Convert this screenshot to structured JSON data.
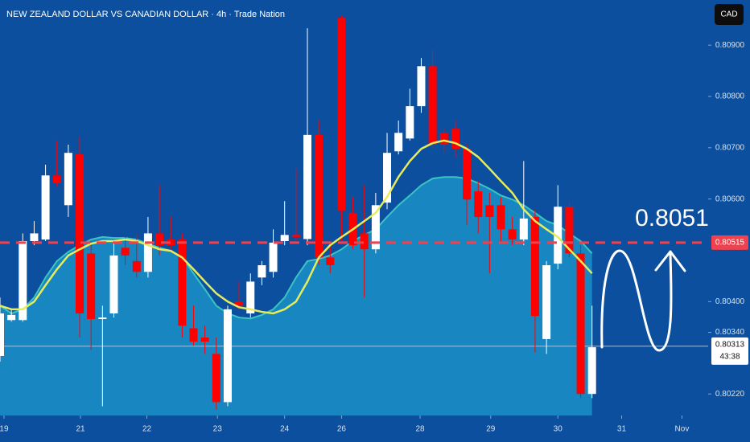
{
  "chart_data": {
    "type": "candlestick",
    "title": "NEW ZEALAND DOLLAR VS CANADIAN DOLLAR · 4h · Trade Nation",
    "currency": "CAD",
    "annotation": "0.8051",
    "up_color": "#ffffff",
    "down_color": "#ff0000",
    "xlim": [
      0,
      62.2
    ],
    "ylim": [
      0.80178,
      0.80988
    ],
    "xticks": [
      {
        "value": 0.35,
        "label": "19"
      },
      {
        "value": 7.07,
        "label": "21"
      },
      {
        "value": 12.9,
        "label": "22"
      },
      {
        "value": 19.1,
        "label": "23"
      },
      {
        "value": 25,
        "label": "24"
      },
      {
        "value": 30,
        "label": "26"
      },
      {
        "value": 36.9,
        "label": "28"
      },
      {
        "value": 43.1,
        "label": "29"
      },
      {
        "value": 49,
        "label": "30"
      },
      {
        "value": 54.6,
        "label": "31"
      },
      {
        "value": 59.9,
        "label": "Nov"
      }
    ],
    "yticks": [
      {
        "value": 0.8022,
        "label": "0.80220"
      },
      {
        "value": 0.8034,
        "label": "0.80340"
      },
      {
        "value": 0.804,
        "label": "0.80400"
      },
      {
        "value": 0.806,
        "label": "0.80600"
      },
      {
        "value": 0.807,
        "label": "0.80700"
      },
      {
        "value": 0.808,
        "label": "0.80800"
      },
      {
        "value": 0.809,
        "label": "0.80900"
      }
    ],
    "candles": {
      "open": [
        0.80294,
        0.80364,
        0.80364,
        0.80518,
        0.80521,
        0.80646,
        0.80588,
        0.80687,
        0.80494,
        0.80366,
        0.80377,
        0.80505,
        0.80479,
        0.80458,
        0.80533,
        0.80521,
        0.80521,
        0.80348,
        0.8033,
        0.80298,
        0.80204,
        0.804,
        0.80377,
        0.80447,
        0.80458,
        0.80518,
        0.8053,
        0.80522,
        0.80725,
        0.80486,
        0.80953,
        0.80573,
        0.80533,
        0.80502,
        0.80593,
        0.80693,
        0.80718,
        0.80781,
        0.80859,
        0.80729,
        0.80737,
        0.80698,
        0.80615,
        0.80588,
        0.80588,
        0.80541,
        0.80521,
        0.80565,
        0.80327,
        0.80474,
        0.80585,
        0.80494,
        0.8022
      ],
      "high": [
        0.80408,
        0.80385,
        0.80533,
        0.80557,
        0.80667,
        0.80714,
        0.80706,
        0.80721,
        0.80518,
        0.80392,
        0.80518,
        0.80526,
        0.80533,
        0.80565,
        0.80627,
        0.80565,
        0.80533,
        0.80392,
        0.80353,
        0.8033,
        0.80392,
        0.80439,
        0.80455,
        0.80479,
        0.80541,
        0.80596,
        0.80659,
        0.80933,
        0.80753,
        0.8051,
        0.80957,
        0.80604,
        0.80627,
        0.80612,
        0.80729,
        0.80753,
        0.80815,
        0.80875,
        0.80891,
        0.80737,
        0.80753,
        0.80706,
        0.80635,
        0.80612,
        0.80604,
        0.80565,
        0.80674,
        0.8058,
        0.80479,
        0.80627,
        0.80596,
        0.8051,
        0.80392
      ],
      "low": [
        0.80283,
        0.80361,
        0.80361,
        0.8051,
        0.80518,
        0.80624,
        0.80565,
        0.8033,
        0.80306,
        0.80196,
        0.80369,
        0.80471,
        0.80447,
        0.80447,
        0.8049,
        0.80502,
        0.8033,
        0.80314,
        0.80298,
        0.80189,
        0.80196,
        0.80385,
        0.80369,
        0.80432,
        0.80447,
        0.8051,
        0.80518,
        0.8051,
        0.80471,
        0.80455,
        0.80518,
        0.80502,
        0.80408,
        0.80494,
        0.8058,
        0.80687,
        0.80714,
        0.80768,
        0.80698,
        0.8069,
        0.80682,
        0.80549,
        0.80533,
        0.80455,
        0.80518,
        0.8051,
        0.8051,
        0.80301,
        0.80298,
        0.80463,
        0.80486,
        0.80212,
        0.80212
      ],
      "close": [
        0.80377,
        0.80374,
        0.80518,
        0.80533,
        0.80646,
        0.80631,
        0.8069,
        0.80377,
        0.80366,
        0.80369,
        0.8049,
        0.8049,
        0.80458,
        0.80533,
        0.8051,
        0.8051,
        0.80353,
        0.80322,
        0.80322,
        0.80204,
        0.80385,
        0.80392,
        0.80439,
        0.80471,
        0.80515,
        0.8053,
        0.80526,
        0.80725,
        0.80486,
        0.80471,
        0.80577,
        0.8051,
        0.80502,
        0.80588,
        0.8069,
        0.80729,
        0.80781,
        0.80859,
        0.80706,
        0.80706,
        0.80698,
        0.80599,
        0.80565,
        0.80565,
        0.80541,
        0.80521,
        0.80562,
        0.80372,
        0.80471,
        0.80585,
        0.80494,
        0.8022,
        0.80311
      ]
    },
    "series": [
      {
        "name": "MA",
        "color": "#e6ec5a",
        "values": [
          0.80392,
          0.80385,
          0.80385,
          0.804,
          0.80432,
          0.80463,
          0.8049,
          0.80502,
          0.80513,
          0.80518,
          0.80518,
          0.80521,
          0.80518,
          0.8051,
          0.80502,
          0.80499,
          0.80486,
          0.80463,
          0.80439,
          0.80416,
          0.804,
          0.80389,
          0.80385,
          0.8038,
          0.80377,
          0.80385,
          0.804,
          0.80439,
          0.80486,
          0.8051,
          0.80526,
          0.80541,
          0.80557,
          0.80573,
          0.80604,
          0.80643,
          0.80674,
          0.80698,
          0.80709,
          0.80714,
          0.80709,
          0.80698,
          0.80682,
          0.80659,
          0.80635,
          0.80612,
          0.8058,
          0.80557,
          0.80541,
          0.80526,
          0.80502,
          0.80479,
          0.80455
        ]
      },
      {
        "name": "Band",
        "color": "#3cc4c0",
        "fill": "#1b8fc6",
        "values": [
          0.80392,
          0.80377,
          0.80385,
          0.80408,
          0.80447,
          0.80479,
          0.80497,
          0.8051,
          0.80521,
          0.80526,
          0.80524,
          0.80524,
          0.80521,
          0.80513,
          0.80505,
          0.80499,
          0.80486,
          0.80455,
          0.80424,
          0.80392,
          0.80377,
          0.80369,
          0.80367,
          0.80374,
          0.80385,
          0.80408,
          0.80447,
          0.80479,
          0.80483,
          0.8049,
          0.80502,
          0.80518,
          0.8053,
          0.80541,
          0.80565,
          0.80588,
          0.80607,
          0.80627,
          0.8064,
          0.80643,
          0.80643,
          0.8064,
          0.80631,
          0.8062,
          0.80607,
          0.80599,
          0.80588,
          0.80573,
          0.80557,
          0.80549,
          0.80533,
          0.80518,
          0.80494
        ]
      }
    ],
    "level": {
      "value": 0.80515,
      "label": "0.80515",
      "color": "#f0424e"
    },
    "last": {
      "value": 0.80313,
      "label": "0.80313"
    },
    "countdown": "43:38"
  }
}
